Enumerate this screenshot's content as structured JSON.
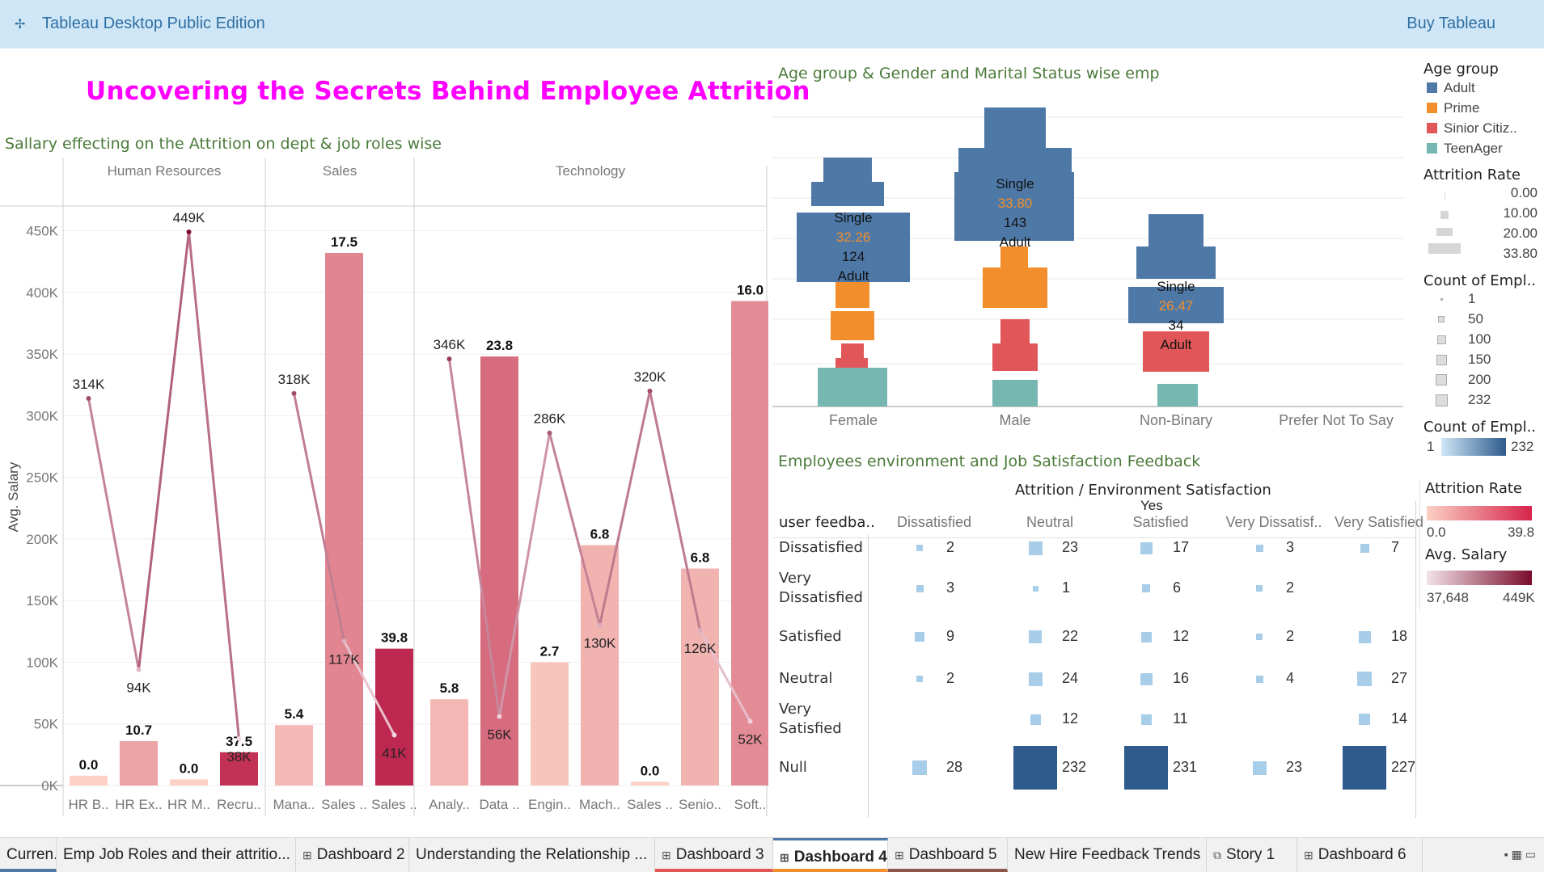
{
  "app": {
    "title": "Tableau Desktop Public Edition",
    "buy_label": "Buy Tableau"
  },
  "dashboard": {
    "title": "Uncovering the Secrets Behind Employee Attrition"
  },
  "salary_chart": {
    "title": "Sallary effecting on the Attrition on dept & job roles wise",
    "ylabel": "Avg. Salary",
    "y_ticks": [
      "0K",
      "50K",
      "100K",
      "150K",
      "200K",
      "250K",
      "300K",
      "350K",
      "400K",
      "450K"
    ]
  },
  "age_chart": {
    "title": "Age group & Gender and Marital Status wise emp",
    "categories": [
      "Female",
      "Male",
      "Non-Binary",
      "Prefer Not To Say"
    ],
    "labels": [
      {
        "status": "Single",
        "rate": "32.26",
        "count": "124",
        "group": "Adult"
      },
      {
        "status": "Single",
        "rate": "33.80",
        "count": "143",
        "group": "Adult"
      },
      {
        "status": "Single",
        "rate": "26.47",
        "count": "34",
        "group": "Adult"
      }
    ]
  },
  "matrix": {
    "title": "Employees environment and Job Satisfaction Feedback",
    "header_top": "Attrition  /  Environment Satisfaction",
    "header_yes": "Yes",
    "row_header": "user feedba..",
    "columns": [
      "Dissatisfied",
      "Neutral",
      "Satisfied",
      "Very Dissatisf..",
      "Very Satisfied"
    ],
    "rows": [
      {
        "label": "Dissatisfied",
        "values": [
          "2",
          "23",
          "17",
          "3",
          "7"
        ]
      },
      {
        "label": "Very Dissatisfied",
        "values": [
          "3",
          "1",
          "6",
          "2",
          ""
        ]
      },
      {
        "label": "Satisfied",
        "values": [
          "9",
          "22",
          "12",
          "2",
          "18"
        ]
      },
      {
        "label": "Neutral",
        "values": [
          "2",
          "24",
          "16",
          "4",
          "27"
        ]
      },
      {
        "label": "Very Satisfied",
        "values": [
          "",
          "12",
          "11",
          "",
          "14"
        ]
      },
      {
        "label": "Null",
        "values": [
          "28",
          "232",
          "231",
          "23",
          "227"
        ]
      }
    ]
  },
  "legends": {
    "age_group": {
      "title": "Age group",
      "items": [
        {
          "label": "Adult",
          "color": "#4e79a7"
        },
        {
          "label": "Prime",
          "color": "#f28e2b"
        },
        {
          "label": "Sinior Citiz..",
          "color": "#e15759"
        },
        {
          "label": "TeenAger",
          "color": "#76b7b2"
        }
      ]
    },
    "attrition_rate_size": {
      "title": "Attrition Rate",
      "items": [
        "0.00",
        "10.00",
        "20.00",
        "33.80"
      ]
    },
    "count_size": {
      "title": "Count of Empl..",
      "items": [
        "1",
        "50",
        "100",
        "150",
        "200",
        "232"
      ]
    },
    "count_color": {
      "title": "Count of Empl..",
      "min": "1",
      "max": "232"
    },
    "attrition_color": {
      "title": "Attrition Rate",
      "min": "0.0",
      "max": "39.8"
    },
    "salary_color": {
      "title": "Avg. Salary",
      "min": "37,648",
      "max": "449K"
    }
  },
  "tabs": [
    "Curren...",
    "Emp Job Roles and their attritio...",
    "Dashboard 2",
    "Understanding the Relationship ...",
    "Dashboard 3",
    "Dashboard 4",
    "Dashboard 5",
    "New Hire Feedback Trends",
    "Story 1",
    "Dashboard 6"
  ],
  "chart_data": {
    "type": "bar",
    "title": "Sallary effecting on the Attrition on dept & job roles wise",
    "ylabel": "Avg. Salary",
    "ylim": [
      0,
      470000
    ],
    "departments": [
      {
        "name": "Human Resources",
        "roles": [
          {
            "role": "HR B..",
            "rate": 0.0,
            "rate_label": "0.0",
            "salary": 314000,
            "salary_label": "314K"
          },
          {
            "role": "HR Ex..",
            "rate": 10.7,
            "rate_label": "10.7",
            "salary": 94000,
            "salary_label": "94K"
          },
          {
            "role": "HR M..",
            "rate": 0.0,
            "rate_label": "0.0",
            "salary": 449000,
            "salary_label": "449K"
          },
          {
            "role": "Recru..",
            "rate": 37.5,
            "rate_label": "37.5",
            "salary": 38000,
            "salary_label": "38K"
          }
        ]
      },
      {
        "name": "Sales",
        "roles": [
          {
            "role": "Mana..",
            "rate": 5.4,
            "rate_label": "5.4",
            "salary": 318000,
            "salary_label": "318K"
          },
          {
            "role": "Sales ..",
            "rate": 17.5,
            "rate_label": "17.5",
            "salary": 117000,
            "salary_label": "117K"
          },
          {
            "role": "Sales ..",
            "rate": 39.8,
            "rate_label": "39.8",
            "salary": 41000,
            "salary_label": "41K"
          }
        ]
      },
      {
        "name": "Technology",
        "roles": [
          {
            "role": "Analy..",
            "rate": 5.8,
            "rate_label": "5.8",
            "salary": 346000,
            "salary_label": "346K"
          },
          {
            "role": "Data ..",
            "rate": 23.8,
            "rate_label": "23.8",
            "salary": 56000,
            "salary_label": "56K"
          },
          {
            "role": "Engin..",
            "rate": 2.7,
            "rate_label": "2.7",
            "salary": 286000,
            "salary_label": "286K"
          },
          {
            "role": "Mach..",
            "rate": 6.8,
            "rate_label": "6.8",
            "salary": 130000,
            "salary_label": "130K"
          },
          {
            "role": "Sales ..",
            "rate": 0.0,
            "rate_label": "0.0",
            "salary": 320000,
            "salary_label": "320K"
          },
          {
            "role": "Senio..",
            "rate": 6.8,
            "rate_label": "6.8",
            "salary": 126000,
            "salary_label": "126K"
          },
          {
            "role": "Soft..",
            "rate": 16.0,
            "rate_label": "16.0",
            "salary": 52000,
            "salary_label": "52K"
          }
        ]
      }
    ]
  }
}
